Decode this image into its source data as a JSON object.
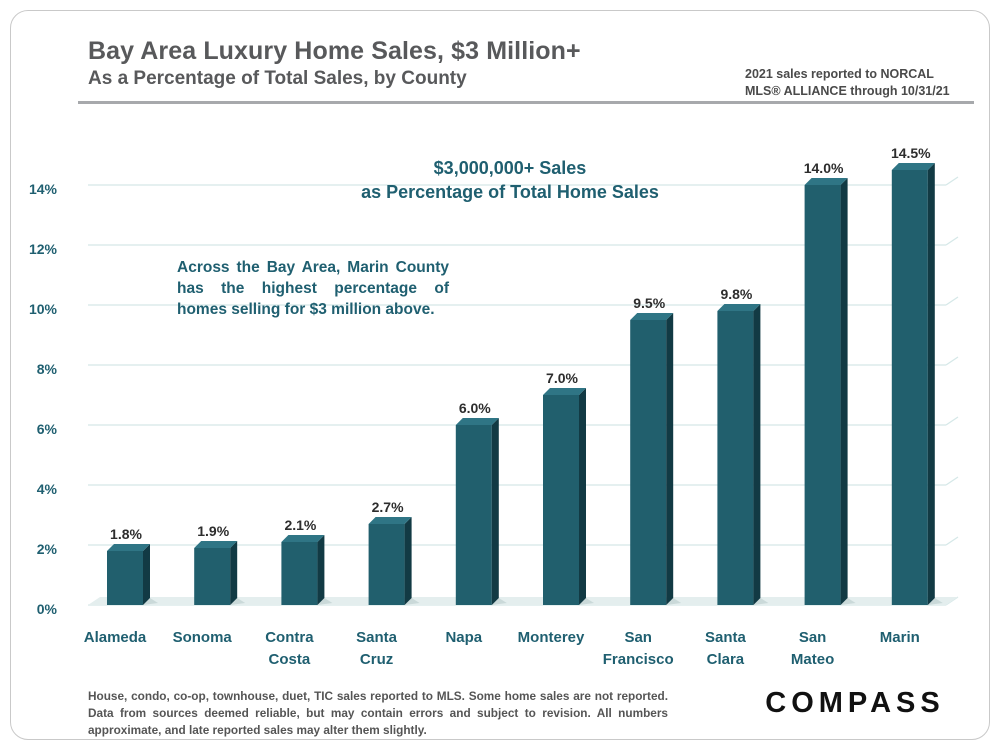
{
  "header": {
    "title": "Bay Area Luxury Home Sales, $3 Million+",
    "subtitle": "As a Percentage of Total Sales, by County",
    "source_line1": "2021 sales reported to NORCAL",
    "source_line2": "MLS® ALLIANCE through 10/31/21"
  },
  "chart_title_line1": "$3,000,000+ Sales",
  "chart_title_line2": "as Percentage of Total Home Sales",
  "annotation": "Across the Bay Area, Marin County has the highest percentage of homes selling for $3 million above.",
  "footnote": "House, condo, co-op, townhouse, duet, TIC sales reported to MLS. Some home sales are not reported. Data from sources deemed reliable, but may contain errors and subject to revision. All numbers approximate, and late reported sales may alter them slightly.",
  "logo_text": "COMPASS",
  "colors": {
    "bar_front": "#215f6d",
    "bar_side": "#123a44",
    "bar_top": "#2f7585",
    "text_accent": "#1f5f70",
    "grid": "#d5e8e8"
  },
  "chart_data": {
    "type": "bar",
    "title": "$3,000,000+ Sales as Percentage of Total Home Sales",
    "xlabel": "",
    "ylabel": "",
    "ylim": [
      0,
      14
    ],
    "yticks": [
      0,
      2,
      4,
      6,
      8,
      10,
      12,
      14
    ],
    "ytick_labels": [
      "0%",
      "2%",
      "4%",
      "6%",
      "8%",
      "10%",
      "12%",
      "14%"
    ],
    "categories": [
      [
        "Alameda"
      ],
      [
        "Sonoma"
      ],
      [
        "Contra",
        "Costa"
      ],
      [
        "Santa",
        "Cruz"
      ],
      [
        "Napa"
      ],
      [
        "Monterey"
      ],
      [
        "San",
        "Francisco"
      ],
      [
        "Santa",
        "Clara"
      ],
      [
        "San",
        "Mateo"
      ],
      [
        "Marin"
      ]
    ],
    "values": [
      1.8,
      1.9,
      2.1,
      2.7,
      6.0,
      7.0,
      9.5,
      9.8,
      14.0,
      14.5
    ],
    "value_labels": [
      "1.8%",
      "1.9%",
      "2.1%",
      "2.7%",
      "6.0%",
      "7.0%",
      "9.5%",
      "9.8%",
      "14.0%",
      "14.5%"
    ]
  }
}
